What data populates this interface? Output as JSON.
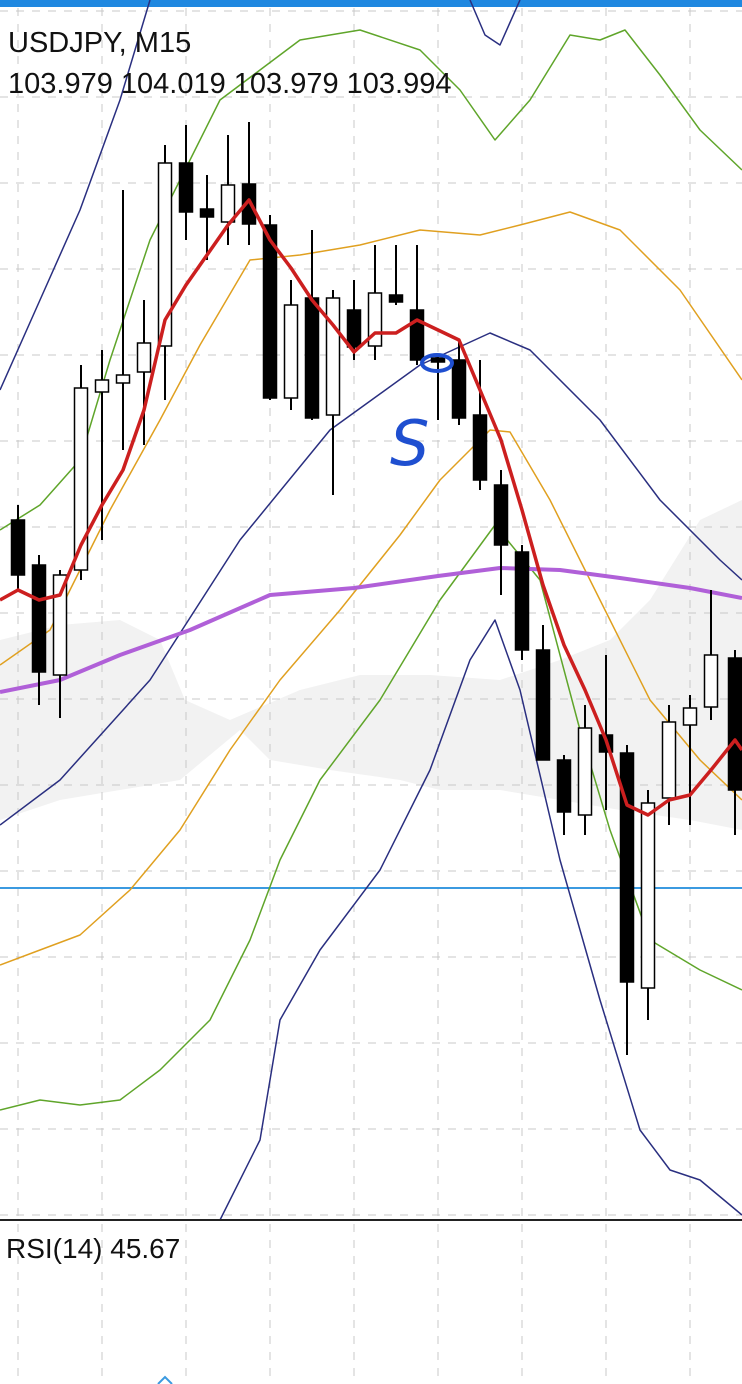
{
  "header": {
    "symbol": "USDJPY, M15",
    "ohlc": "103.979 104.019 103.979 103.994"
  },
  "annotation": "S",
  "indicator": "RSI(14) 45.67"
}
